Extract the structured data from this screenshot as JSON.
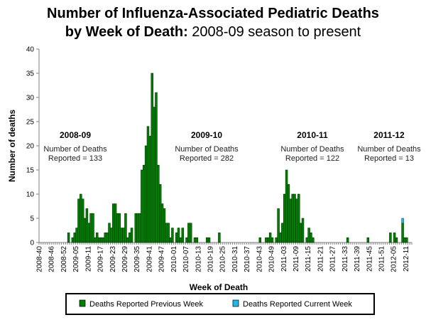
{
  "chart_data": {
    "type": "bar",
    "stacked": true,
    "title_bold": "Number of Influenza-Associated Pediatric Deaths",
    "title_line2_bold": "by Week of Death:",
    "title_line2_regular": " 2008-09 season to present",
    "xlabel": "Week of Death",
    "ylabel": "Number of deaths",
    "ylim": [
      0,
      40
    ],
    "yticks": [
      0,
      5,
      10,
      15,
      20,
      25,
      30,
      35,
      40
    ],
    "grid": false,
    "legend_position": "bottom",
    "colors": {
      "previous": "#008000",
      "current": "#1fb8e8",
      "bar_edge": "#003300"
    },
    "xtick_labels": [
      "2008-40",
      "2008-46",
      "2008-52",
      "2009-05",
      "2009-11",
      "2009-17",
      "2009-23",
      "2009-29",
      "2009-35",
      "2009-41",
      "2009-47",
      "2010-01",
      "2010-07",
      "2010-13",
      "2010-19",
      "2010-25",
      "2010-31",
      "2010-37",
      "2010-43",
      "2010-49",
      "2011-03",
      "2011-09",
      "2011-15",
      "2011-21",
      "2011-27",
      "2011-33",
      "2011-39",
      "2011-45",
      "2011-51",
      "2012-05",
      "2012-11"
    ],
    "categories": [
      "2008-40",
      "2008-41",
      "2008-42",
      "2008-43",
      "2008-44",
      "2008-45",
      "2008-46",
      "2008-47",
      "2008-48",
      "2008-49",
      "2008-50",
      "2008-51",
      "2008-52",
      "2008-53",
      "2009-01",
      "2009-02",
      "2009-03",
      "2009-04",
      "2009-05",
      "2009-06",
      "2009-07",
      "2009-08",
      "2009-09",
      "2009-10",
      "2009-11",
      "2009-12",
      "2009-13",
      "2009-14",
      "2009-15",
      "2009-16",
      "2009-17",
      "2009-18",
      "2009-19",
      "2009-20",
      "2009-21",
      "2009-22",
      "2009-23",
      "2009-24",
      "2009-25",
      "2009-26",
      "2009-27",
      "2009-28",
      "2009-29",
      "2009-30",
      "2009-31",
      "2009-32",
      "2009-33",
      "2009-34",
      "2009-35",
      "2009-36",
      "2009-37",
      "2009-38",
      "2009-39",
      "2009-40",
      "2009-41",
      "2009-42",
      "2009-43",
      "2009-44",
      "2009-45",
      "2009-46",
      "2009-47",
      "2009-48",
      "2009-49",
      "2009-50",
      "2009-51",
      "2009-52",
      "2010-01",
      "2010-02",
      "2010-03",
      "2010-04",
      "2010-05",
      "2010-06",
      "2010-07",
      "2010-08",
      "2010-09",
      "2010-10",
      "2010-11",
      "2010-12",
      "2010-13",
      "2010-14",
      "2010-15",
      "2010-16",
      "2010-17",
      "2010-18",
      "2010-19",
      "2010-20",
      "2010-21",
      "2010-22",
      "2010-23",
      "2010-24",
      "2010-25",
      "2010-26",
      "2010-27",
      "2010-28",
      "2010-29",
      "2010-30",
      "2010-31",
      "2010-32",
      "2010-33",
      "2010-34",
      "2010-35",
      "2010-36",
      "2010-37",
      "2010-38",
      "2010-39",
      "2010-40",
      "2010-41",
      "2010-42",
      "2010-43",
      "2010-44",
      "2010-45",
      "2010-46",
      "2010-47",
      "2010-48",
      "2010-49",
      "2010-50",
      "2010-51",
      "2010-52",
      "2011-01",
      "2011-02",
      "2011-03",
      "2011-04",
      "2011-05",
      "2011-06",
      "2011-07",
      "2011-08",
      "2011-09",
      "2011-10",
      "2011-11",
      "2011-12",
      "2011-13",
      "2011-14",
      "2011-15",
      "2011-16",
      "2011-17",
      "2011-18",
      "2011-19",
      "2011-20",
      "2011-21",
      "2011-22",
      "2011-23",
      "2011-24",
      "2011-25",
      "2011-26",
      "2011-27",
      "2011-28",
      "2011-29",
      "2011-30",
      "2011-31",
      "2011-32",
      "2011-33",
      "2011-34",
      "2011-35",
      "2011-36",
      "2011-37",
      "2011-38",
      "2011-39",
      "2011-40",
      "2011-41",
      "2011-42",
      "2011-43",
      "2011-44",
      "2011-45",
      "2011-46",
      "2011-47",
      "2011-48",
      "2011-49",
      "2011-50",
      "2011-51",
      "2011-52",
      "2012-01",
      "2012-02",
      "2012-03",
      "2012-04",
      "2012-05",
      "2012-06",
      "2012-07",
      "2012-08",
      "2012-09",
      "2012-10",
      "2012-11",
      "2012-12",
      "2012-13"
    ],
    "series": [
      {
        "name": "Deaths Reported Previous Week",
        "values": [
          0,
          0,
          0,
          0,
          0,
          0,
          0,
          0,
          0,
          0,
          0,
          0,
          0,
          0,
          2,
          0,
          1,
          2,
          3,
          9,
          10,
          9,
          5,
          7,
          4,
          6,
          6,
          1,
          2,
          1,
          1,
          1,
          2,
          2,
          4,
          3,
          8,
          8,
          6,
          6,
          3,
          3,
          6,
          1,
          2,
          3,
          0,
          6,
          6,
          6,
          15,
          16,
          20,
          24,
          22,
          35,
          28,
          31,
          16,
          12,
          8,
          7,
          4,
          4,
          1,
          3,
          0,
          2,
          3,
          1,
          3,
          0,
          1,
          4,
          4,
          0,
          1,
          1,
          0,
          0,
          0,
          0,
          1,
          1,
          0,
          0,
          0,
          0,
          2,
          0,
          0,
          0,
          0,
          0,
          0,
          0,
          0,
          0,
          0,
          0,
          0,
          0,
          0,
          0,
          0,
          0,
          0,
          0,
          1,
          0,
          0,
          1,
          1,
          2,
          1,
          0,
          1,
          7,
          2,
          4,
          10,
          15,
          12,
          9,
          10,
          10,
          9,
          10,
          4,
          5,
          0,
          1,
          3,
          2,
          1,
          0,
          0,
          0,
          0,
          0,
          0,
          0,
          0,
          0,
          0,
          0,
          0,
          0,
          0,
          0,
          0,
          1,
          0,
          0,
          0,
          0,
          0,
          0,
          0,
          0,
          0,
          1,
          0,
          0,
          0,
          0,
          0,
          0,
          0,
          0,
          0,
          0,
          2,
          0,
          2,
          1,
          0,
          0,
          4,
          1,
          1,
          0,
          0
        ]
      },
      {
        "name": "Deaths Reported Current Week",
        "values": [
          0,
          0,
          0,
          0,
          0,
          0,
          0,
          0,
          0,
          0,
          0,
          0,
          0,
          0,
          0,
          0,
          0,
          0,
          0,
          0,
          0,
          0,
          0,
          0,
          0,
          0,
          0,
          0,
          0,
          0,
          0,
          0,
          0,
          0,
          0,
          0,
          0,
          0,
          0,
          0,
          0,
          0,
          0,
          0,
          0,
          0,
          0,
          0,
          0,
          0,
          0,
          0,
          0,
          0,
          0,
          0,
          0,
          0,
          0,
          0,
          0,
          0,
          0,
          0,
          0,
          0,
          0,
          0,
          0,
          0,
          0,
          0,
          0,
          0,
          0,
          0,
          0,
          0,
          0,
          0,
          0,
          0,
          0,
          0,
          0,
          0,
          0,
          0,
          0,
          0,
          0,
          0,
          0,
          0,
          0,
          0,
          0,
          0,
          0,
          0,
          0,
          0,
          0,
          0,
          0,
          0,
          0,
          0,
          0,
          0,
          0,
          0,
          0,
          0,
          0,
          0,
          0,
          0,
          0,
          0,
          0,
          0,
          0,
          0,
          0,
          0,
          0,
          0,
          0,
          0,
          0,
          0,
          0,
          0,
          0,
          0,
          0,
          0,
          0,
          0,
          0,
          0,
          0,
          0,
          0,
          0,
          0,
          0,
          0,
          0,
          0,
          0,
          0,
          0,
          0,
          0,
          0,
          0,
          0,
          0,
          0,
          0,
          0,
          0,
          0,
          0,
          0,
          0,
          0,
          0,
          0,
          0,
          0,
          0,
          0,
          0,
          0,
          0,
          1,
          0,
          0,
          0,
          0
        ]
      }
    ],
    "annotations": [
      {
        "season": "2008-09",
        "line1": "Number of Deaths",
        "line2": "Reported = 133"
      },
      {
        "season": "2009-10",
        "line1": "Number of Deaths",
        "line2": "Reported = 282"
      },
      {
        "season": "2010-11",
        "line1": "Number of Deaths",
        "line2": "Reported = 122"
      },
      {
        "season": "2011-12",
        "line1": "Number of Deaths",
        "line2": "Reported = 13"
      }
    ]
  }
}
